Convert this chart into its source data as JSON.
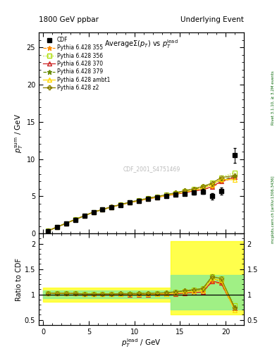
{
  "title_left": "1800 GeV ppbar",
  "title_right": "Underlying Event",
  "plot_title": "AverageΣ(p_{T}) vs p_{T}^{lead}",
  "ylabel_main": "p_{T}^{sum} / GeV",
  "ylabel_ratio": "Ratio to CDF",
  "xlabel": "p_{T}^{lead} / GeV",
  "watermark": "CDF_2001_S4751469",
  "right_label_top": "Rivet 3.1.10, ≥ 3.2M events",
  "right_label_bottom": "mcplots.cern.ch [arXiv:1306.3436]",
  "cdf_x": [
    0.5,
    1.5,
    2.5,
    3.5,
    4.5,
    5.5,
    6.5,
    7.5,
    8.5,
    9.5,
    10.5,
    11.5,
    12.5,
    13.5,
    14.5,
    15.5,
    16.5,
    17.5,
    18.5,
    19.5,
    21.0
  ],
  "cdf_y": [
    0.35,
    0.85,
    1.35,
    1.85,
    2.35,
    2.85,
    3.2,
    3.55,
    3.85,
    4.15,
    4.4,
    4.65,
    4.85,
    5.05,
    5.2,
    5.35,
    5.5,
    5.65,
    5.0,
    5.7,
    10.5
  ],
  "cdf_yerr": [
    0.04,
    0.05,
    0.06,
    0.07,
    0.08,
    0.09,
    0.09,
    0.09,
    0.09,
    0.09,
    0.09,
    0.1,
    0.1,
    0.1,
    0.15,
    0.2,
    0.25,
    0.3,
    0.4,
    0.5,
    1.0
  ],
  "mc_x": [
    0.5,
    1.5,
    2.5,
    3.5,
    4.5,
    5.5,
    6.5,
    7.5,
    8.5,
    9.5,
    10.5,
    11.5,
    12.5,
    13.5,
    14.5,
    15.5,
    16.5,
    17.5,
    18.5,
    19.5,
    21.0
  ],
  "mc_xerr": [
    0.5,
    0.5,
    0.5,
    0.5,
    0.5,
    0.5,
    0.5,
    0.5,
    0.5,
    0.5,
    0.5,
    0.5,
    0.5,
    0.5,
    0.5,
    0.5,
    0.5,
    0.5,
    0.5,
    0.5,
    1.0
  ],
  "mc355_y": [
    0.36,
    0.87,
    1.38,
    1.88,
    2.38,
    2.88,
    3.22,
    3.57,
    3.88,
    4.18,
    4.44,
    4.68,
    4.9,
    5.1,
    5.3,
    5.52,
    5.75,
    5.9,
    6.2,
    6.9,
    7.5
  ],
  "mc356_y": [
    0.36,
    0.87,
    1.38,
    1.88,
    2.38,
    2.88,
    3.22,
    3.57,
    3.88,
    4.18,
    4.45,
    4.72,
    4.95,
    5.18,
    5.45,
    5.72,
    6.0,
    6.3,
    6.8,
    7.5,
    8.2
  ],
  "mc370_y": [
    0.36,
    0.87,
    1.38,
    1.88,
    2.38,
    2.88,
    3.22,
    3.57,
    3.87,
    4.15,
    4.4,
    4.65,
    4.87,
    5.07,
    5.27,
    5.48,
    5.7,
    5.9,
    6.3,
    7.0,
    7.6
  ],
  "mc379_y": [
    0.36,
    0.87,
    1.38,
    1.88,
    2.38,
    2.88,
    3.23,
    3.59,
    3.91,
    4.22,
    4.49,
    4.74,
    4.97,
    5.2,
    5.45,
    5.7,
    5.95,
    6.2,
    6.6,
    7.2,
    7.7
  ],
  "mc_ambt1_y": [
    0.36,
    0.87,
    1.38,
    1.88,
    2.38,
    2.88,
    3.22,
    3.57,
    3.88,
    4.16,
    4.42,
    4.67,
    4.89,
    5.1,
    5.33,
    5.57,
    5.82,
    6.1,
    6.55,
    7.3,
    7.2
  ],
  "mc_z2_y": [
    0.36,
    0.87,
    1.38,
    1.88,
    2.38,
    2.88,
    3.23,
    3.59,
    3.91,
    4.21,
    4.49,
    4.75,
    4.98,
    5.22,
    5.48,
    5.75,
    6.02,
    6.32,
    6.75,
    7.5,
    7.8
  ],
  "color_355": "#FF8C00",
  "color_356": "#AADD00",
  "color_370": "#CC2222",
  "color_379": "#668800",
  "color_ambt1": "#FFD700",
  "color_z2": "#8B8000",
  "color_cdf": "black",
  "ylim_main": [
    0,
    27
  ],
  "ylim_ratio": [
    0.4,
    2.2
  ],
  "xlim": [
    -0.5,
    22
  ],
  "yticks_main": [
    0,
    5,
    10,
    15,
    20,
    25
  ],
  "yticks_ratio": [
    0.5,
    1.0,
    1.5,
    2.0
  ],
  "xticks": [
    0,
    5,
    10,
    15,
    20
  ],
  "band1_xlo": 0.0,
  "band1_xhi": 14.0,
  "band1_ylo_yellow": 0.86,
  "band1_yhi_yellow": 1.14,
  "band1_ylo_green": 0.92,
  "band1_yhi_green": 1.08,
  "band2_xlo": 14.0,
  "band2_xhi": 22.0,
  "band2_ylo_yellow": 0.6,
  "band2_yhi_yellow": 2.05,
  "band2_ylo_green": 0.7,
  "band2_yhi_green": 1.38
}
